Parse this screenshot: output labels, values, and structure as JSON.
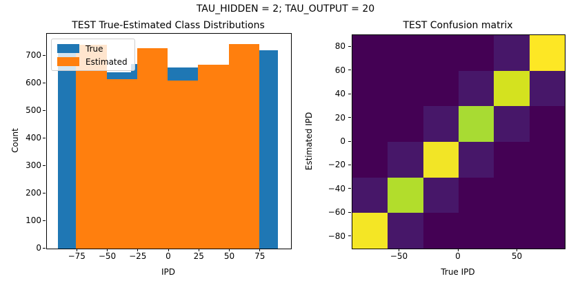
{
  "suptitle": "TAU_HIDDEN = 2; TAU_OUTPUT = 20",
  "chart_data": [
    {
      "type": "bar",
      "subtype": "overlaid-histograms",
      "title": "TEST True-Estimated Class Distributions",
      "xlabel": "IPD",
      "ylabel": "Count",
      "xlim": [
        -100,
        100
      ],
      "ylim": [
        0,
        780
      ],
      "xticks": [
        -75,
        -50,
        -25,
        0,
        25,
        50,
        75
      ],
      "yticks": [
        0,
        100,
        200,
        300,
        400,
        500,
        600,
        700
      ],
      "grid": false,
      "legend_position": "upper left",
      "series": [
        {
          "name": "True",
          "color": "#1f77b4",
          "bin_edges": [
            -91,
            -61,
            -31,
            -1,
            29,
            59,
            89
          ],
          "counts": [
            725,
            640,
            670,
            658,
            650,
            721
          ]
        },
        {
          "name": "Estimated",
          "color": "#ff7f0e",
          "bin_edges": [
            -76,
            -51,
            -26,
            -1,
            24,
            49,
            74
          ],
          "counts": [
            740,
            615,
            727,
            611,
            668,
            742
          ]
        }
      ]
    },
    {
      "type": "heatmap",
      "subtype": "confusion-matrix",
      "title": "TEST Confusion matrix",
      "xlabel": "True IPD",
      "ylabel": "Estimated IPD",
      "colormap": "viridis",
      "extent": [
        -90,
        90
      ],
      "xticks": [
        -50,
        0,
        50
      ],
      "yticks": [
        -80,
        -60,
        -40,
        -20,
        0,
        20,
        40,
        60,
        80
      ],
      "cols_true_left_to_right": [
        -75,
        -45,
        -15,
        15,
        45,
        75
      ],
      "rows_estimated_top_to_bottom": [
        75,
        45,
        15,
        -15,
        -45,
        -75
      ],
      "background_color": "#440154",
      "cell_colors_top_to_bottom": [
        [
          "#440154",
          "#440154",
          "#440154",
          "#440154",
          "#471769",
          "#fde725"
        ],
        [
          "#440154",
          "#440154",
          "#440154",
          "#471769",
          "#d4e21f",
          "#471769"
        ],
        [
          "#440154",
          "#440154",
          "#471769",
          "#a8db33",
          "#471769",
          "#440154"
        ],
        [
          "#440154",
          "#471769",
          "#f2e526",
          "#471769",
          "#440154",
          "#440154"
        ],
        [
          "#471769",
          "#b2dd2c",
          "#471769",
          "#440154",
          "#440154",
          "#440154"
        ],
        [
          "#f4e625",
          "#471769",
          "#440154",
          "#440154",
          "#440154",
          "#440154"
        ]
      ]
    }
  ]
}
